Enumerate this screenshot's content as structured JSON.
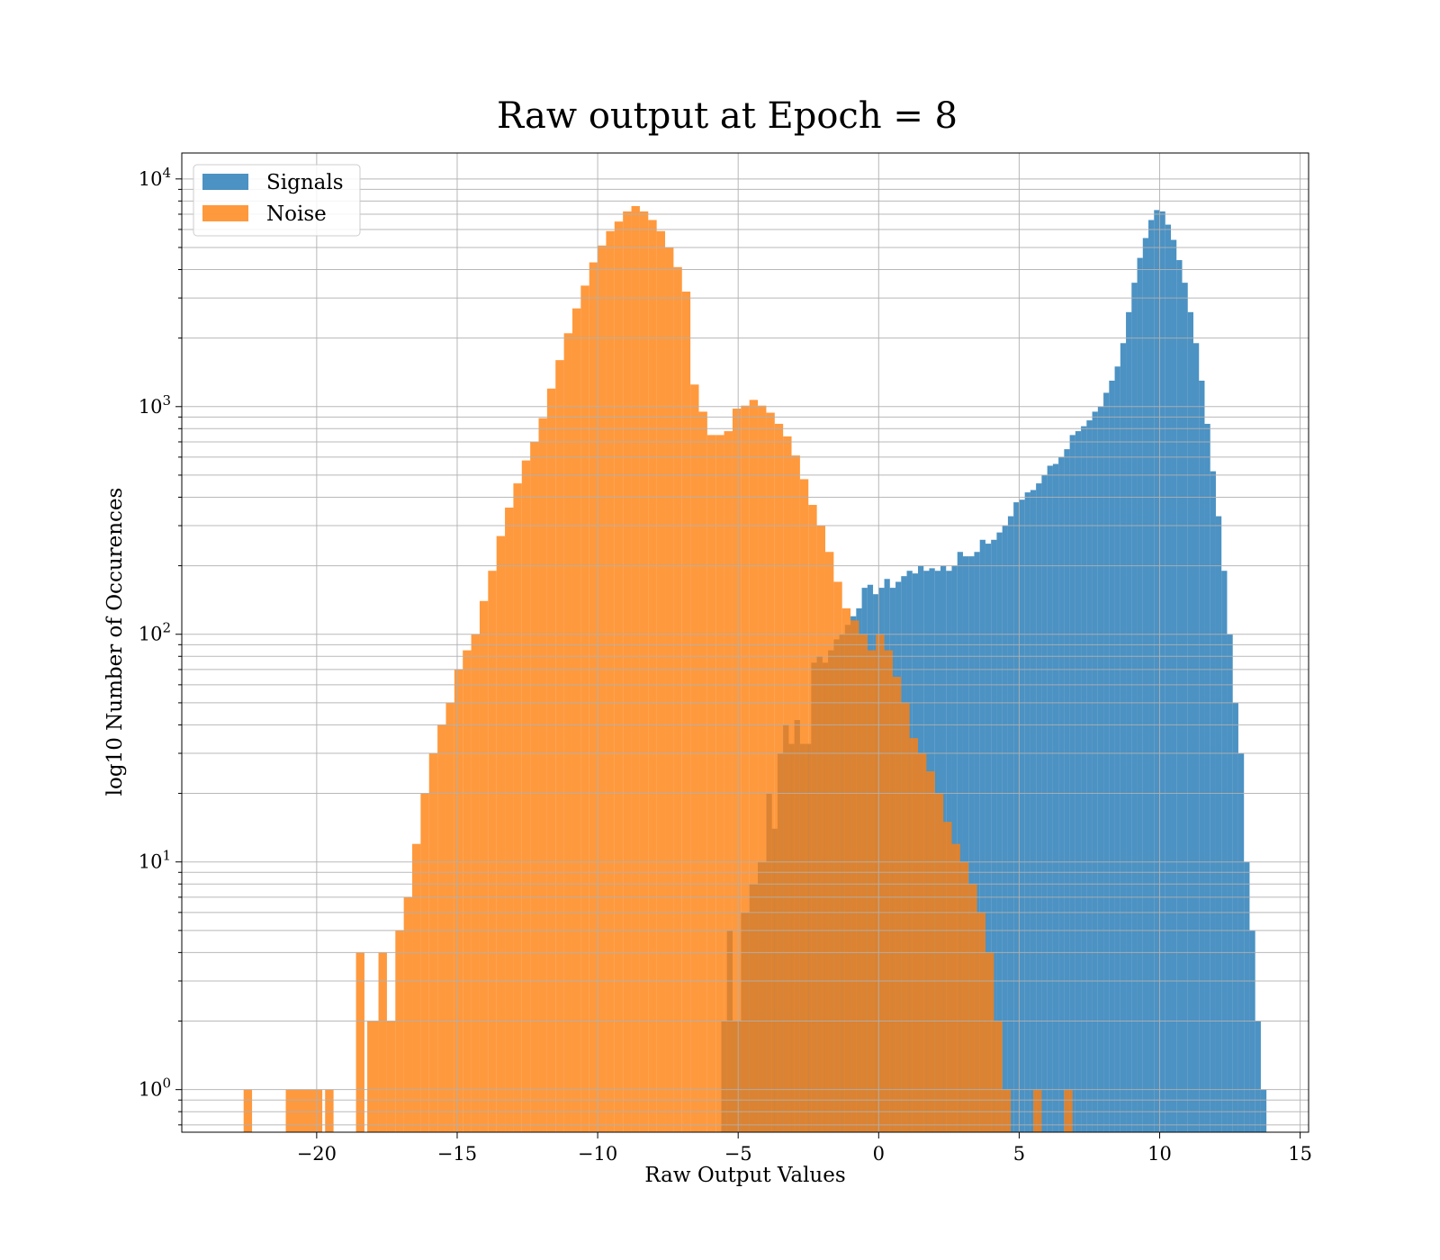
{
  "chart_data": {
    "type": "histogram",
    "title": "Raw output at Epoch = 8",
    "xlabel": "Raw Output Values",
    "ylabel": "log10 Number of Occurences",
    "xlim": [
      -24.8,
      15.3
    ],
    "ylim": [
      0.65,
      13000
    ],
    "yscale": "log",
    "grid": true,
    "legend_position": "top-left",
    "x_ticks": [
      -20,
      -15,
      -10,
      -5,
      0,
      5,
      10,
      15
    ],
    "x_tick_labels": [
      "−20",
      "−15",
      "−10",
      "−5",
      "0",
      "5",
      "10",
      "15"
    ],
    "y_ticks": [
      {
        "value": 1,
        "base": "10",
        "exp": "0"
      },
      {
        "value": 10,
        "base": "10",
        "exp": "1"
      },
      {
        "value": 100,
        "base": "10",
        "exp": "2"
      },
      {
        "value": 1000,
        "base": "10",
        "exp": "3"
      },
      {
        "value": 10000,
        "base": "10",
        "exp": "4"
      }
    ],
    "series": [
      {
        "name": "Signals",
        "color": "#1f77b4",
        "bars": [
          [
            -5.6,
            -5.4,
            2
          ],
          [
            -5.4,
            -5.2,
            5
          ],
          [
            -5.2,
            -4.9,
            2
          ],
          [
            -4.9,
            -4.6,
            6
          ],
          [
            -4.6,
            -4.3,
            8
          ],
          [
            -4.3,
            -4.0,
            10
          ],
          [
            -4.0,
            -3.8,
            20
          ],
          [
            -3.8,
            -3.6,
            14
          ],
          [
            -3.6,
            -3.4,
            30
          ],
          [
            -3.4,
            -3.2,
            40
          ],
          [
            -3.2,
            -3.0,
            33
          ],
          [
            -3.0,
            -2.8,
            42
          ],
          [
            -2.8,
            -2.6,
            33
          ],
          [
            -2.6,
            -2.4,
            33
          ],
          [
            -2.4,
            -2.2,
            75
          ],
          [
            -2.2,
            -2.0,
            80
          ],
          [
            -2.0,
            -1.8,
            75
          ],
          [
            -1.8,
            -1.6,
            85
          ],
          [
            -1.6,
            -1.4,
            95
          ],
          [
            -1.4,
            -1.2,
            100
          ],
          [
            -1.2,
            -1.0,
            110
          ],
          [
            -1.0,
            -0.8,
            120
          ],
          [
            -0.8,
            -0.6,
            130
          ],
          [
            -0.6,
            -0.4,
            160
          ],
          [
            -0.4,
            -0.2,
            165
          ],
          [
            -0.2,
            0.0,
            150
          ],
          [
            0.0,
            0.2,
            160
          ],
          [
            0.2,
            0.4,
            175
          ],
          [
            0.4,
            0.6,
            160
          ],
          [
            0.6,
            0.8,
            170
          ],
          [
            0.8,
            1.0,
            180
          ],
          [
            1.0,
            1.2,
            190
          ],
          [
            1.2,
            1.4,
            185
          ],
          [
            1.4,
            1.6,
            200
          ],
          [
            1.6,
            1.8,
            190
          ],
          [
            1.8,
            2.0,
            195
          ],
          [
            2.0,
            2.2,
            190
          ],
          [
            2.2,
            2.4,
            200
          ],
          [
            2.4,
            2.6,
            190
          ],
          [
            2.6,
            2.8,
            200
          ],
          [
            2.8,
            3.0,
            230
          ],
          [
            3.0,
            3.2,
            220
          ],
          [
            3.2,
            3.4,
            220
          ],
          [
            3.4,
            3.6,
            230
          ],
          [
            3.6,
            3.8,
            260
          ],
          [
            3.8,
            4.0,
            250
          ],
          [
            4.0,
            4.2,
            260
          ],
          [
            4.2,
            4.4,
            280
          ],
          [
            4.4,
            4.6,
            300
          ],
          [
            4.6,
            4.8,
            330
          ],
          [
            4.8,
            5.0,
            380
          ],
          [
            5.0,
            5.2,
            390
          ],
          [
            5.2,
            5.4,
            420
          ],
          [
            5.4,
            5.6,
            430
          ],
          [
            5.6,
            5.8,
            460
          ],
          [
            5.8,
            6.0,
            500
          ],
          [
            6.0,
            6.2,
            550
          ],
          [
            6.2,
            6.4,
            560
          ],
          [
            6.4,
            6.6,
            600
          ],
          [
            6.6,
            6.8,
            650
          ],
          [
            6.8,
            7.0,
            750
          ],
          [
            7.0,
            7.2,
            780
          ],
          [
            7.2,
            7.4,
            820
          ],
          [
            7.4,
            7.6,
            870
          ],
          [
            7.6,
            7.8,
            950
          ],
          [
            7.8,
            8.0,
            1000
          ],
          [
            8.0,
            8.2,
            1150
          ],
          [
            8.2,
            8.4,
            1300
          ],
          [
            8.4,
            8.6,
            1500
          ],
          [
            8.6,
            8.8,
            1900
          ],
          [
            8.8,
            9.0,
            2600
          ],
          [
            9.0,
            9.2,
            3500
          ],
          [
            9.2,
            9.4,
            4500
          ],
          [
            9.4,
            9.6,
            5500
          ],
          [
            9.6,
            9.8,
            6600
          ],
          [
            9.8,
            10.0,
            7300
          ],
          [
            10.0,
            10.2,
            7200
          ],
          [
            10.2,
            10.4,
            6300
          ],
          [
            10.4,
            10.6,
            5400
          ],
          [
            10.6,
            10.8,
            4400
          ],
          [
            10.8,
            11.0,
            3500
          ],
          [
            11.0,
            11.2,
            2600
          ],
          [
            11.2,
            11.4,
            1900
          ],
          [
            11.4,
            11.6,
            1300
          ],
          [
            11.6,
            11.8,
            840
          ],
          [
            11.8,
            12.0,
            520
          ],
          [
            12.0,
            12.2,
            330
          ],
          [
            12.2,
            12.4,
            190
          ],
          [
            12.4,
            12.6,
            100
          ],
          [
            12.6,
            12.8,
            50
          ],
          [
            12.8,
            13.0,
            30
          ],
          [
            13.0,
            13.2,
            10
          ],
          [
            13.2,
            13.4,
            5
          ],
          [
            13.4,
            13.6,
            2
          ],
          [
            13.6,
            13.8,
            1
          ]
        ]
      },
      {
        "name": "Noise",
        "color": "#ff7f0e",
        "bars": [
          [
            -22.6,
            -22.3,
            1
          ],
          [
            -21.1,
            -20.3,
            1
          ],
          [
            -20.3,
            -19.8,
            1
          ],
          [
            -19.7,
            -19.4,
            1
          ],
          [
            -18.6,
            -18.3,
            4
          ],
          [
            -18.2,
            -17.8,
            2
          ],
          [
            -17.8,
            -17.5,
            4
          ],
          [
            -17.5,
            -17.2,
            2
          ],
          [
            -17.2,
            -16.9,
            5
          ],
          [
            -16.9,
            -16.6,
            7
          ],
          [
            -16.6,
            -16.3,
            12
          ],
          [
            -16.3,
            -16.0,
            20
          ],
          [
            -16.0,
            -15.7,
            30
          ],
          [
            -15.7,
            -15.4,
            40
          ],
          [
            -15.4,
            -15.1,
            50
          ],
          [
            -15.1,
            -14.8,
            70
          ],
          [
            -14.8,
            -14.5,
            85
          ],
          [
            -14.5,
            -14.2,
            100
          ],
          [
            -14.2,
            -13.9,
            140
          ],
          [
            -13.9,
            -13.6,
            190
          ],
          [
            -13.6,
            -13.3,
            270
          ],
          [
            -13.3,
            -13.0,
            360
          ],
          [
            -13.0,
            -12.7,
            460
          ],
          [
            -12.7,
            -12.4,
            580
          ],
          [
            -12.4,
            -12.1,
            700
          ],
          [
            -12.1,
            -11.8,
            890
          ],
          [
            -11.8,
            -11.5,
            1200
          ],
          [
            -11.5,
            -11.2,
            1600
          ],
          [
            -11.2,
            -10.9,
            2100
          ],
          [
            -10.9,
            -10.6,
            2700
          ],
          [
            -10.6,
            -10.3,
            3400
          ],
          [
            -10.3,
            -10.0,
            4300
          ],
          [
            -10.0,
            -9.7,
            5100
          ],
          [
            -9.7,
            -9.4,
            5900
          ],
          [
            -9.4,
            -9.1,
            6500
          ],
          [
            -9.1,
            -8.8,
            7200
          ],
          [
            -8.8,
            -8.5,
            7600
          ],
          [
            -8.5,
            -8.2,
            7200
          ],
          [
            -8.2,
            -7.9,
            6600
          ],
          [
            -7.9,
            -7.6,
            5900
          ],
          [
            -7.6,
            -7.3,
            5000
          ],
          [
            -7.3,
            -7.0,
            4100
          ],
          [
            -7.0,
            -6.7,
            3200
          ],
          [
            -6.7,
            -6.4,
            1250
          ],
          [
            -6.4,
            -6.1,
            950
          ],
          [
            -6.1,
            -5.8,
            750
          ],
          [
            -5.8,
            -5.5,
            750
          ],
          [
            -5.5,
            -5.2,
            780
          ],
          [
            -5.2,
            -4.9,
            980
          ],
          [
            -4.9,
            -4.6,
            1010
          ],
          [
            -4.6,
            -4.3,
            1070
          ],
          [
            -4.3,
            -4.0,
            1010
          ],
          [
            -4.0,
            -3.7,
            940
          ],
          [
            -3.7,
            -3.4,
            840
          ],
          [
            -3.4,
            -3.1,
            740
          ],
          [
            -3.1,
            -2.8,
            610
          ],
          [
            -2.8,
            -2.5,
            480
          ],
          [
            -2.5,
            -2.2,
            370
          ],
          [
            -2.2,
            -1.9,
            300
          ],
          [
            -1.9,
            -1.6,
            230
          ],
          [
            -1.6,
            -1.3,
            170
          ],
          [
            -1.3,
            -1.0,
            130
          ],
          [
            -1.0,
            -0.7,
            115
          ],
          [
            -0.7,
            -0.4,
            100
          ],
          [
            -0.4,
            -0.1,
            85
          ],
          [
            -0.1,
            0.2,
            100
          ],
          [
            0.2,
            0.5,
            85
          ],
          [
            0.5,
            0.8,
            65
          ],
          [
            0.8,
            1.1,
            50
          ],
          [
            1.1,
            1.4,
            35
          ],
          [
            1.4,
            1.7,
            30
          ],
          [
            1.7,
            2.0,
            25
          ],
          [
            2.0,
            2.3,
            20
          ],
          [
            2.3,
            2.6,
            15
          ],
          [
            2.6,
            2.9,
            12
          ],
          [
            2.9,
            3.2,
            10
          ],
          [
            3.2,
            3.5,
            8
          ],
          [
            3.5,
            3.8,
            6
          ],
          [
            3.8,
            4.1,
            4
          ],
          [
            4.1,
            4.4,
            2
          ],
          [
            4.4,
            4.7,
            1
          ],
          [
            5.5,
            5.8,
            1
          ],
          [
            6.6,
            6.9,
            1
          ]
        ]
      }
    ]
  }
}
